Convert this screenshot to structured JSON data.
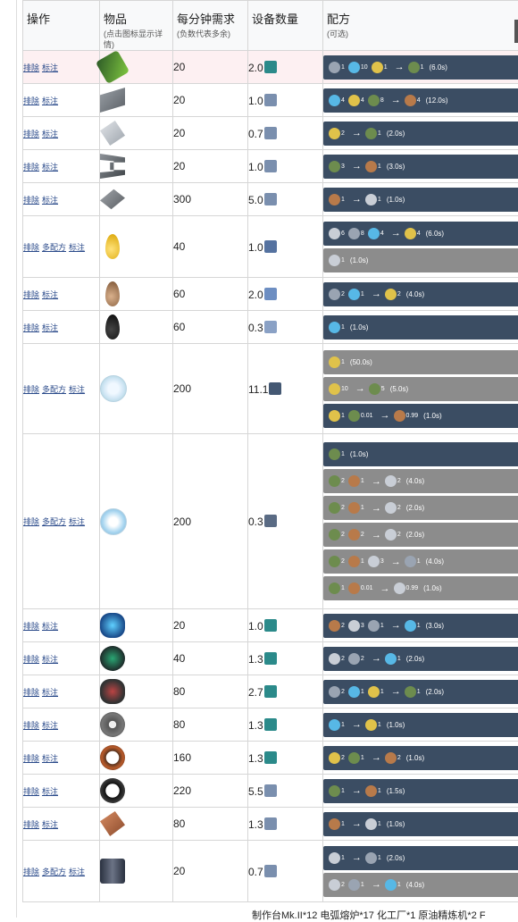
{
  "headers": {
    "ops": "操作",
    "item": "物品",
    "item_sub": "(点击图标显示详情)",
    "demand": "每分钟需求",
    "demand_sub": "(负数代表多余)",
    "devices": "设备数量",
    "recipe": "配方",
    "recipe_sub": "(可选)"
  },
  "actions": {
    "remove": "排除",
    "mark": "标注",
    "multi": "多配方"
  },
  "rows": [
    {
      "item_icon": "circuit-board-icon",
      "demand": "20",
      "devices": "2.0",
      "device_icon": "assembler-icon",
      "recipes": [
        {
          "state": "active",
          "text_parts": [
            "1",
            "10",
            "1",
            "1"
          ],
          "time": "(6.0s)"
        }
      ]
    },
    {
      "item_icon": "steel-beam-icon",
      "demand": "20",
      "devices": "1.0",
      "device_icon": "lab-icon",
      "recipes": [
        {
          "state": "active",
          "text_parts": [
            "4",
            "4",
            "8",
            "4"
          ],
          "time": "(12.0s)"
        }
      ]
    },
    {
      "item_icon": "plate-icon",
      "demand": "20",
      "devices": "0.7",
      "device_icon": "lab-icon",
      "recipes": [
        {
          "state": "active",
          "text_parts": [
            "2",
            "1"
          ],
          "time": "(2.0s)"
        }
      ]
    },
    {
      "item_icon": "girder-icon",
      "demand": "20",
      "devices": "1.0",
      "device_icon": "lab-icon",
      "recipes": [
        {
          "state": "active",
          "text_parts": [
            "3",
            "1"
          ],
          "time": "(3.0s)"
        }
      ]
    },
    {
      "item_icon": "metal-sheet-icon",
      "demand": "300",
      "devices": "5.0",
      "device_icon": "lab-icon",
      "recipes": [
        {
          "state": "active",
          "text_parts": [
            "1",
            "1"
          ],
          "time": "(1.0s)"
        }
      ]
    },
    {
      "item_icon": "oil-drop-icon",
      "demand": "40",
      "devices": "1.0",
      "device_icon": "refinery-icon",
      "recipes": [
        {
          "state": "active",
          "text_parts": [
            "6",
            "8",
            "4",
            "4"
          ],
          "time": "(6.0s)"
        },
        {
          "state": "alt",
          "text_parts": [
            "1"
          ],
          "time": "(1.0s)"
        }
      ]
    },
    {
      "item_icon": "brown-drop-icon",
      "demand": "60",
      "devices": "2.0",
      "device_icon": "chem-plant-icon",
      "recipes": [
        {
          "state": "active",
          "text_parts": [
            "2",
            "1",
            "2"
          ],
          "time": "(4.0s)"
        }
      ]
    },
    {
      "item_icon": "crude-oil-icon",
      "demand": "60",
      "devices": "0.3",
      "device_icon": "pump-icon",
      "recipes": [
        {
          "state": "active",
          "text_parts": [
            "1"
          ],
          "time": "(1.0s)"
        }
      ]
    },
    {
      "item_icon": "hydrogen-icon",
      "demand": "200",
      "devices": "11.1",
      "device_icon": "collector-icon",
      "recipes": [
        {
          "state": "alt",
          "text_parts": [
            "1"
          ],
          "time": "(50.0s)"
        },
        {
          "state": "alt",
          "text_parts": [
            "10",
            "5"
          ],
          "time": "(5.0s)"
        },
        {
          "state": "active",
          "text_parts": [
            "1",
            "0.01",
            "0.99"
          ],
          "time": "(1.0s)"
        }
      ]
    },
    {
      "item_icon": "deuterium-icon",
      "demand": "200",
      "devices": "0.3",
      "device_icon": "extractor-icon",
      "recipes": [
        {
          "state": "active",
          "text_parts": [
            "1"
          ],
          "time": "(1.0s)"
        },
        {
          "state": "alt",
          "text_parts": [
            "2",
            "1",
            "2"
          ],
          "time": "(4.0s)"
        },
        {
          "state": "alt",
          "text_parts": [
            "2",
            "1",
            "2"
          ],
          "time": "(2.0s)"
        },
        {
          "state": "alt",
          "text_parts": [
            "2",
            "2",
            "2"
          ],
          "time": "(2.0s)"
        },
        {
          "state": "alt",
          "text_parts": [
            "2",
            "1",
            "3",
            "1"
          ],
          "time": "(4.0s)"
        },
        {
          "state": "alt",
          "text_parts": [
            "1",
            "0.01",
            "0.99"
          ],
          "time": "(1.0s)"
        }
      ]
    },
    {
      "item_icon": "engine-icon",
      "demand": "20",
      "devices": "1.0",
      "device_icon": "assembler-icon",
      "recipes": [
        {
          "state": "active",
          "text_parts": [
            "2",
            "3",
            "1",
            "1"
          ],
          "time": "(3.0s)"
        }
      ]
    },
    {
      "item_icon": "turbine-icon",
      "demand": "40",
      "devices": "1.3",
      "device_icon": "assembler-icon",
      "recipes": [
        {
          "state": "active",
          "text_parts": [
            "2",
            "2",
            "1"
          ],
          "time": "(2.0s)"
        }
      ]
    },
    {
      "item_icon": "motor-icon",
      "demand": "80",
      "devices": "2.7",
      "device_icon": "assembler-icon",
      "recipes": [
        {
          "state": "active",
          "text_parts": [
            "2",
            "1",
            "1",
            "1"
          ],
          "time": "(2.0s)"
        }
      ]
    },
    {
      "item_icon": "gear-icon",
      "demand": "80",
      "devices": "1.3",
      "device_icon": "assembler-icon",
      "recipes": [
        {
          "state": "active",
          "text_parts": [
            "1",
            "1"
          ],
          "time": "(1.0s)"
        }
      ]
    },
    {
      "item_icon": "coil-icon",
      "demand": "160",
      "devices": "1.3",
      "device_icon": "assembler-icon",
      "recipes": [
        {
          "state": "active",
          "text_parts": [
            "2",
            "1",
            "2"
          ],
          "time": "(1.0s)"
        }
      ]
    },
    {
      "item_icon": "magnet-ring-icon",
      "demand": "220",
      "devices": "5.5",
      "device_icon": "lab-icon",
      "recipes": [
        {
          "state": "active",
          "text_parts": [
            "1",
            "1"
          ],
          "time": "(1.5s)"
        }
      ]
    },
    {
      "item_icon": "copper-plate-icon",
      "demand": "80",
      "devices": "1.3",
      "device_icon": "lab-icon",
      "recipes": [
        {
          "state": "active",
          "text_parts": [
            "1",
            "1"
          ],
          "time": "(1.0s)"
        }
      ]
    },
    {
      "item_icon": "graphite-icon",
      "demand": "20",
      "devices": "0.7",
      "device_icon": "lab-icon",
      "recipes": [
        {
          "state": "active",
          "text_parts": [
            "1",
            "1"
          ],
          "time": "(2.0s)"
        },
        {
          "state": "alt",
          "text_parts": [
            "2",
            "1",
            "1"
          ],
          "time": "(4.0s)"
        }
      ]
    }
  ],
  "footer": "制作台Mk.II*12 电弧熔炉*17 化工厂*1 原油精炼机*2 F",
  "colors": {
    "active_recipe": "#3b4d63",
    "alt_recipe": "#8c8c8c",
    "highlight_row": "#fdf0f2",
    "link": "#2a4a8a"
  }
}
